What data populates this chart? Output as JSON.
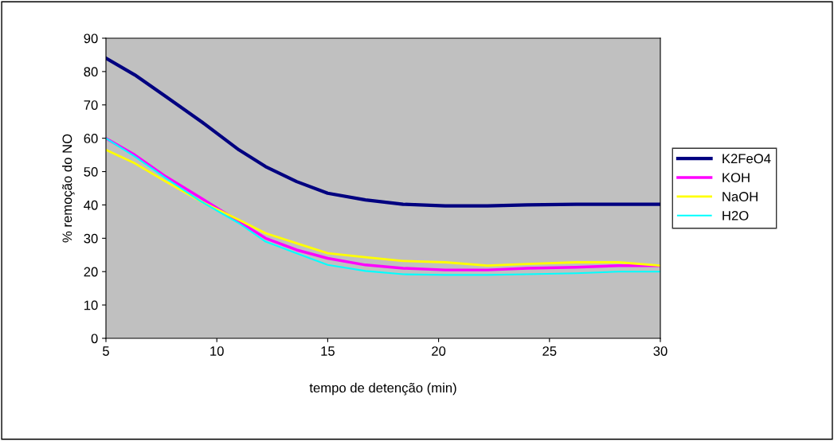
{
  "chart_data": {
    "type": "line",
    "xlabel": "tempo de detenção (min)",
    "ylabel": "% remoção do NO",
    "x": [
      5,
      6.3,
      7.7,
      9.3,
      11,
      12.2,
      13.6,
      15,
      16.7,
      18.4,
      20.3,
      22.2,
      24,
      26.2,
      28.1,
      30
    ],
    "series": [
      {
        "name": "K2FeO4",
        "color": "#000080",
        "values": [
          84,
          79,
          72.5,
          65,
          56.5,
          51.5,
          47,
          43.5,
          41.5,
          40.2,
          39.7,
          39.7,
          40,
          40.2,
          40.2,
          40.2
        ]
      },
      {
        "name": "KOH",
        "color": "#ff00ff",
        "values": [
          60,
          55,
          48.5,
          42,
          35,
          30,
          26.5,
          24,
          22,
          21,
          20.5,
          20.5,
          21,
          21.3,
          21.8,
          21.8
        ]
      },
      {
        "name": "NaOH",
        "color": "#ffff00",
        "values": [
          56.5,
          52.5,
          47,
          41,
          35.5,
          31.5,
          28.5,
          25.5,
          24.3,
          23.2,
          22.8,
          21.8,
          22.3,
          22.8,
          22.8,
          21.8
        ]
      },
      {
        "name": "H2O",
        "color": "#00ffff",
        "values": [
          60,
          54.5,
          48,
          41,
          34.5,
          29,
          25.5,
          22,
          20.2,
          19.2,
          19,
          19,
          19.2,
          19.5,
          20,
          20
        ]
      }
    ],
    "xlim": [
      5,
      30
    ],
    "xticks": [
      5,
      10,
      15,
      20,
      25,
      30
    ],
    "ylim": [
      0,
      90
    ],
    "yticks": [
      0,
      10,
      20,
      30,
      40,
      50,
      60,
      70,
      80,
      90
    ],
    "grid": false,
    "legend": "right",
    "marker": "none",
    "line_style": "solid"
  }
}
